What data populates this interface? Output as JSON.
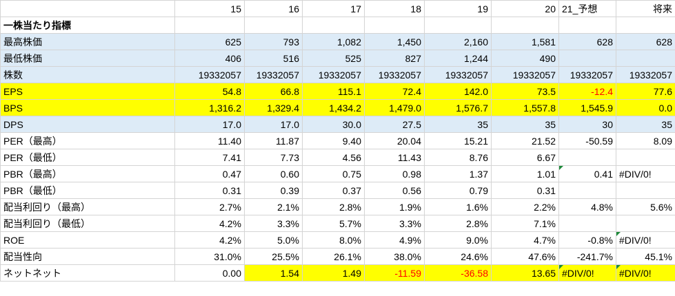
{
  "header": [
    "",
    "15",
    "16",
    "17",
    "18",
    "19",
    "20",
    "21_予想",
    "将来"
  ],
  "rows": [
    {
      "label": "一株当たり指標",
      "bold": true,
      "cells": [
        "",
        "",
        "",
        "",
        "",
        "",
        "",
        ""
      ]
    },
    {
      "label": "最高株価",
      "fill": "blue",
      "cells": [
        "625",
        "793",
        "1,082",
        "1,450",
        "2,160",
        "1,581",
        "628",
        "628"
      ]
    },
    {
      "label": "最低株価",
      "fill": "blue",
      "cells": [
        "406",
        "516",
        "525",
        "827",
        "1,244",
        "490",
        "",
        ""
      ]
    },
    {
      "label": "株数",
      "fill": "blue",
      "cells": [
        "19332057",
        "19332057",
        "19332057",
        "19332057",
        "19332057",
        "19332057",
        "19332057",
        "19332057"
      ]
    },
    {
      "label": "EPS",
      "fill": "yellow",
      "cells": [
        "54.8",
        "66.8",
        "115.1",
        "72.4",
        "142.0",
        "73.5",
        "-12.4",
        "77.6"
      ],
      "neg": [
        6
      ]
    },
    {
      "label": "BPS",
      "fill": "yellow",
      "cells": [
        "1,316.2",
        "1,329.4",
        "1,434.2",
        "1,479.0",
        "1,576.7",
        "1,557.8",
        "1,545.9",
        "0.0"
      ]
    },
    {
      "label": "DPS",
      "fill": "blue",
      "cells": [
        "17.0",
        "17.0",
        "30.0",
        "27.5",
        "35",
        "35",
        "30",
        "35"
      ]
    },
    {
      "label": "PER（最高）",
      "cells": [
        "11.40",
        "11.87",
        "9.40",
        "20.04",
        "15.21",
        "21.52",
        "-50.59",
        "8.09"
      ]
    },
    {
      "label": "PER（最低）",
      "cells": [
        "7.41",
        "7.73",
        "4.56",
        "11.43",
        "8.76",
        "6.67",
        "",
        ""
      ]
    },
    {
      "label": "PBR（最高）",
      "cells": [
        "0.47",
        "0.60",
        "0.75",
        "0.98",
        "1.37",
        "1.01",
        "0.41",
        "#DIV/0!"
      ],
      "tri": [
        6
      ],
      "leftAlign": [
        7
      ]
    },
    {
      "label": "PBR（最低）",
      "cells": [
        "0.31",
        "0.39",
        "0.37",
        "0.56",
        "0.79",
        "0.31",
        "",
        ""
      ]
    },
    {
      "label": "配当利回り（最高）",
      "cells": [
        "2.7%",
        "2.1%",
        "2.8%",
        "1.9%",
        "1.6%",
        "2.2%",
        "4.8%",
        "5.6%"
      ]
    },
    {
      "label": "配当利回り（最低）",
      "cells": [
        "4.2%",
        "3.3%",
        "5.7%",
        "3.3%",
        "2.8%",
        "7.1%",
        "",
        ""
      ]
    },
    {
      "label": "ROE",
      "cells": [
        "4.2%",
        "5.0%",
        "8.0%",
        "4.9%",
        "9.0%",
        "4.7%",
        "-0.8%",
        "#DIV/0!"
      ],
      "tri": [
        7
      ],
      "leftAlign": [
        7
      ]
    },
    {
      "label": "配当性向",
      "cells": [
        "31.0%",
        "25.5%",
        "26.1%",
        "38.0%",
        "24.6%",
        "47.6%",
        "-241.7%",
        "45.1%"
      ]
    },
    {
      "label": "ネットネット",
      "cells": [
        "0.00",
        "1.54",
        "1.49",
        "-11.59",
        "-36.58",
        "13.65",
        "#DIV/0!",
        "#DIV/0!"
      ],
      "yellowCols": [
        1,
        2,
        3,
        4,
        5,
        6,
        7
      ],
      "neg": [
        3,
        4
      ],
      "tri": [
        6,
        7
      ],
      "leftAlign": [
        6,
        7
      ]
    }
  ]
}
